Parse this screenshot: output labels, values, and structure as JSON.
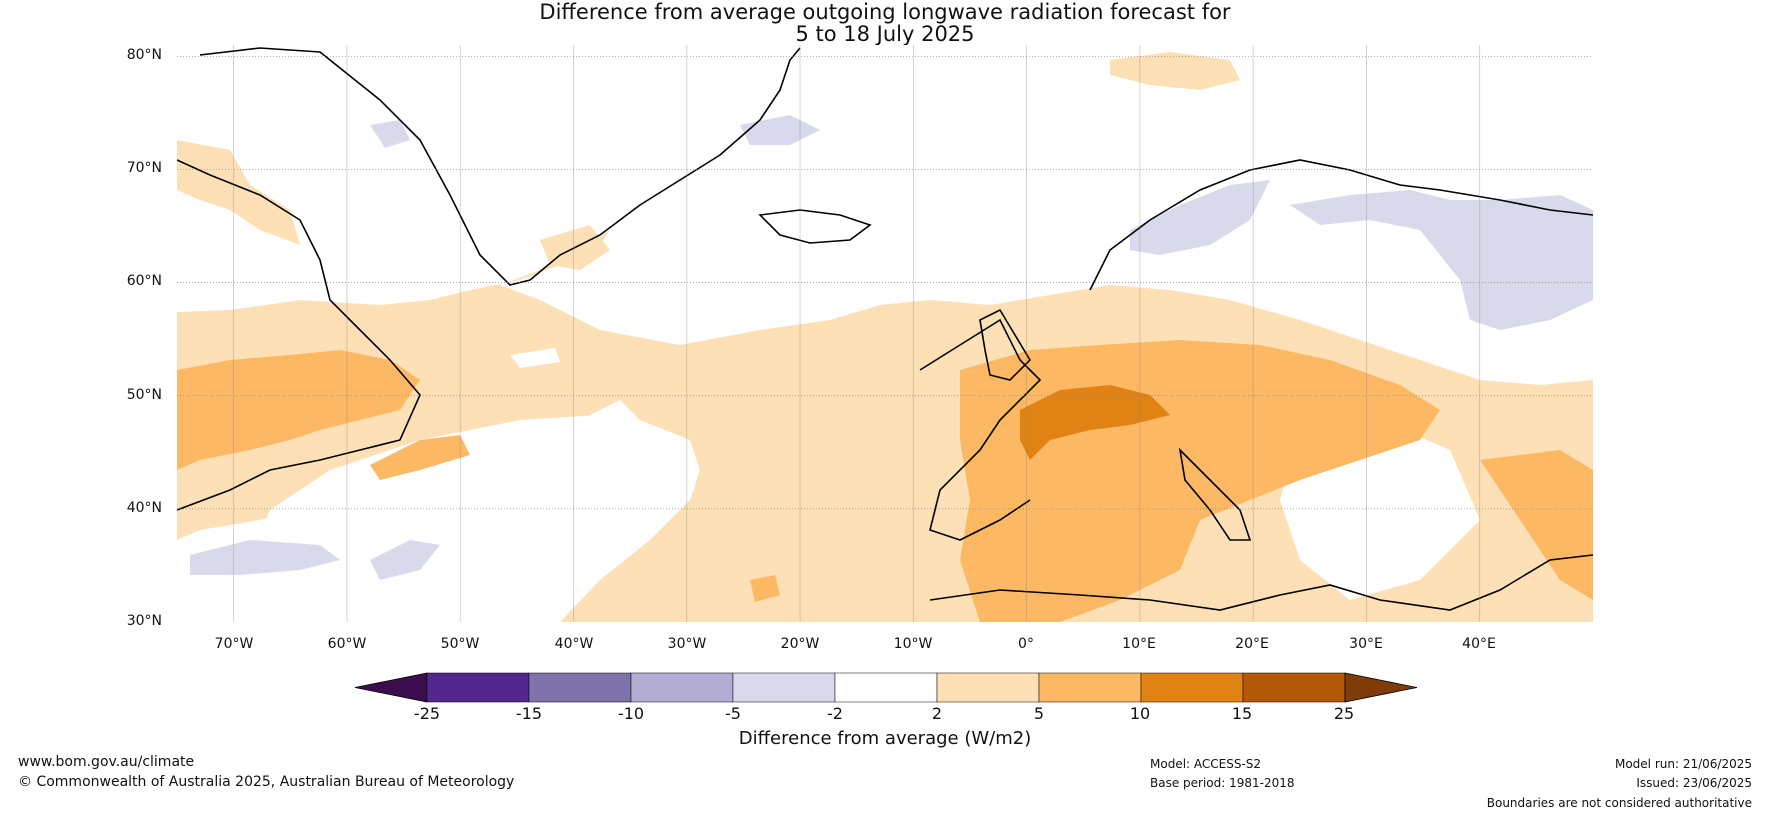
{
  "title": {
    "line1": "Difference from average outgoing longwave radiation forecast for",
    "line2": "5 to 18 July 2025"
  },
  "map": {
    "lat_labels": [
      "80°N",
      "70°N",
      "60°N",
      "50°N",
      "40°N",
      "30°N"
    ],
    "lon_labels": [
      "70°W",
      "60°W",
      "50°W",
      "40°W",
      "30°W",
      "20°W",
      "10°W",
      "0°",
      "10°E",
      "20°E",
      "30°E",
      "40°E"
    ],
    "lon_range": [
      -75,
      50
    ],
    "lat_range": [
      30,
      81
    ],
    "gridlines": true,
    "coastline_color": "#000000",
    "border_color": "#808080"
  },
  "colorbar": {
    "title": "Difference from average (W/m2)",
    "ticks": [
      "-25",
      "-15",
      "-10",
      "-5",
      "-2",
      "2",
      "5",
      "10",
      "15",
      "25"
    ],
    "colors": [
      "#3b0f4f",
      "#54278f",
      "#8073ac",
      "#b2abd2",
      "#d8daeb",
      "#ffffff",
      "#fee0b6",
      "#fdb863",
      "#e08214",
      "#b35806",
      "#7f3b08"
    ]
  },
  "footer": {
    "website": "www.bom.gov.au/climate",
    "copyright": "© Commonwealth of Australia 2025, Australian Bureau of Meteorology",
    "model": "Model: ACCESS-S2",
    "base_period": "Base period: 1981-2018",
    "model_run": "Model run: 21/06/2025",
    "issued": "Issued: 23/06/2025",
    "disclaimer": "Boundaries are not considered authoritative"
  }
}
